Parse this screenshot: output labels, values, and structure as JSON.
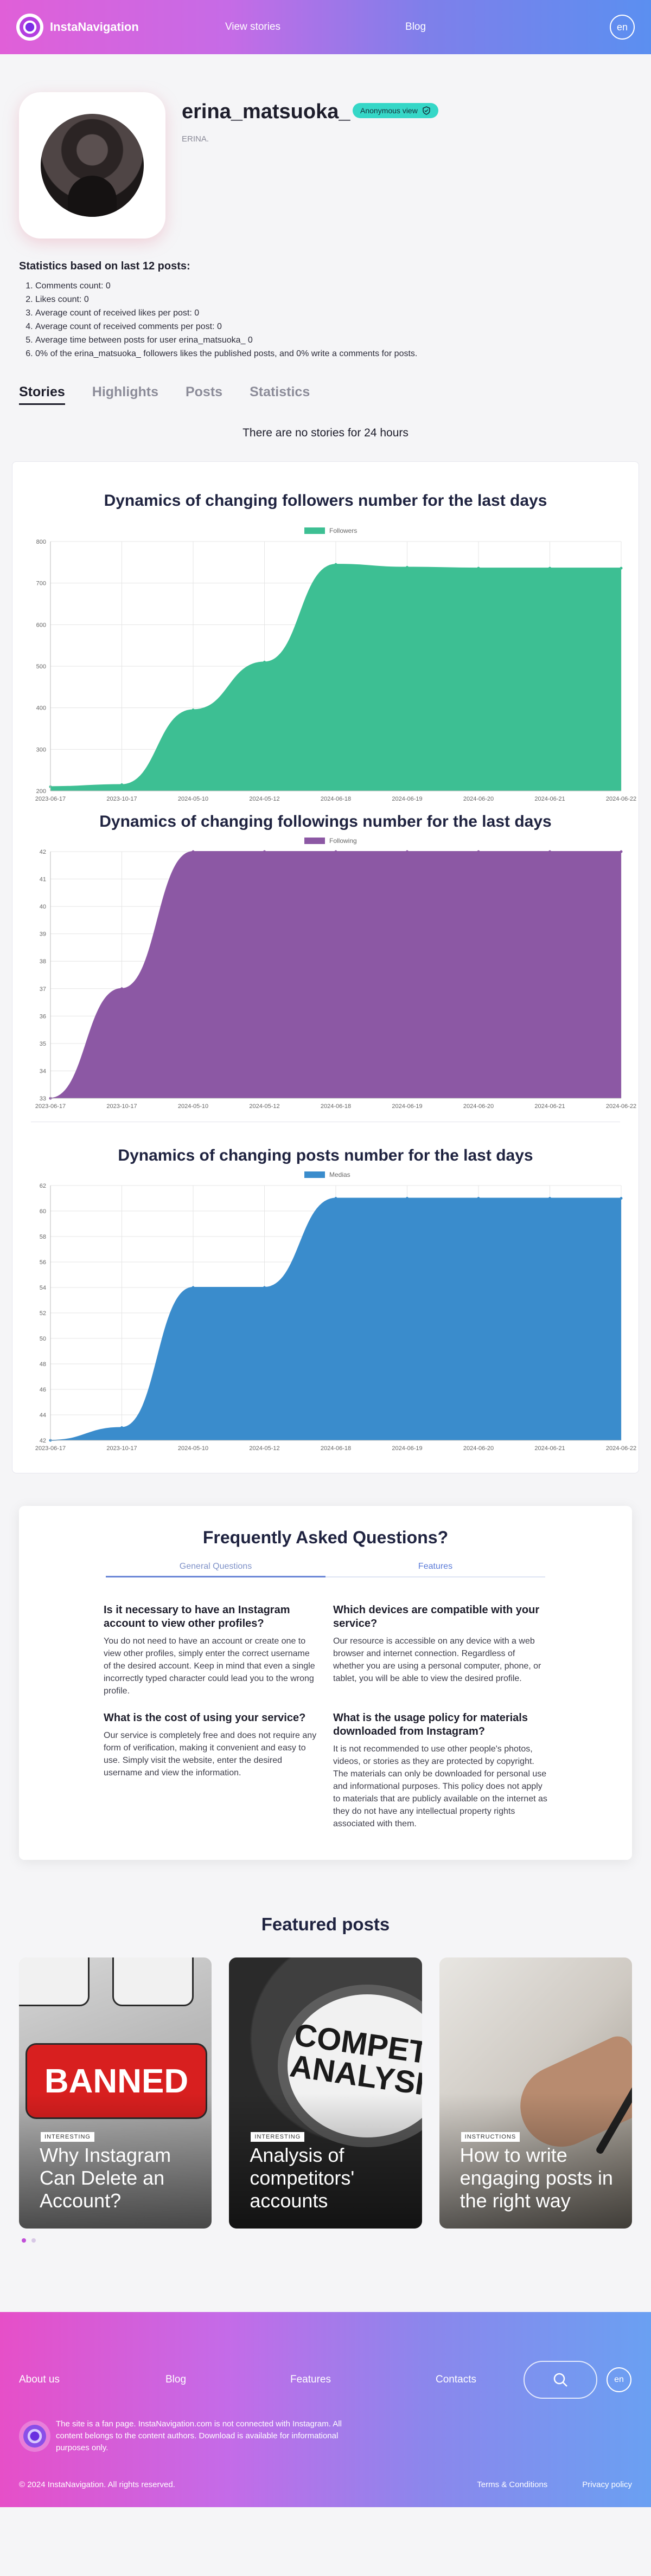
{
  "header": {
    "brand": "InstaNavigation",
    "nav": [
      "View stories",
      "Blog"
    ],
    "lang": "en"
  },
  "profile": {
    "username": "erina_matsuoka_",
    "badge": "Anonymous view",
    "bio": "ERINA."
  },
  "stats": {
    "title": "Statistics based on last 12 posts:",
    "items": [
      "Comments count: 0",
      "Likes count: 0",
      "Average count of received likes per post: 0",
      "Average count of received comments per post: 0",
      "Average time between posts for user erina_matsuoka_ 0",
      "0% of the erina_matsuoka_ followers likes the published posts, and 0% write a comments for posts."
    ]
  },
  "tabs": [
    "Stories",
    "Highlights",
    "Posts",
    "Statistics"
  ],
  "no_stories": "There are no stories for 24 hours",
  "chart_data": [
    {
      "type": "area",
      "title": "Dynamics of changing followers number for the last days",
      "series": [
        {
          "name": "Followers",
          "values": [
            210,
            215,
            395,
            510,
            745,
            738,
            736,
            736,
            736
          ]
        }
      ],
      "categories": [
        "2023-06-17",
        "2023-10-17",
        "2024-05-10",
        "2024-05-12",
        "2024-06-18",
        "2024-06-19",
        "2024-06-20",
        "2024-06-21",
        "2024-06-22"
      ],
      "yticks": [
        200,
        300,
        400,
        500,
        600,
        700,
        800
      ],
      "ylim": [
        200,
        800
      ],
      "color": "#3dbf93",
      "legend": "top"
    },
    {
      "type": "area",
      "title": "Dynamics of changing followings number for the last days",
      "series": [
        {
          "name": "Following",
          "values": [
            33,
            37,
            42,
            42,
            42,
            42,
            42,
            42,
            42
          ]
        }
      ],
      "categories": [
        "2023-06-17",
        "2023-10-17",
        "2024-05-10",
        "2024-05-12",
        "2024-06-18",
        "2024-06-19",
        "2024-06-20",
        "2024-06-21",
        "2024-06-22"
      ],
      "yticks": [
        33,
        34,
        35,
        36,
        37,
        38,
        39,
        40,
        41,
        42
      ],
      "ylim": [
        33,
        42
      ],
      "color": "#8c58a4",
      "legend": "top"
    },
    {
      "type": "area",
      "title": "Dynamics of changing posts number for the last days",
      "series": [
        {
          "name": "Medias",
          "values": [
            42,
            43,
            54,
            54,
            61,
            61,
            61,
            61,
            61
          ]
        }
      ],
      "categories": [
        "2023-06-17",
        "2023-10-17",
        "2024-05-10",
        "2024-05-12",
        "2024-06-18",
        "2024-06-19",
        "2024-06-20",
        "2024-06-21",
        "2024-06-22"
      ],
      "yticks": [
        42,
        44,
        46,
        48,
        50,
        52,
        54,
        56,
        58,
        60,
        62
      ],
      "ylim": [
        42,
        62
      ],
      "color": "#3a8ccc",
      "legend": "top"
    }
  ],
  "faq": {
    "title": "Frequently Asked Questions?",
    "tabs": [
      "General Questions",
      "Features"
    ],
    "items": [
      {
        "q": "Is it necessary to have an Instagram account to view other profiles?",
        "a": "You do not need to have an account or create one to view other profiles, simply enter the correct username of the desired account. Keep in mind that even a single incorrectly typed character could lead you to the wrong profile."
      },
      {
        "q": "Which devices are compatible with your service?",
        "a": "Our resource is accessible on any device with a web browser and internet connection. Regardless of whether you are using a personal computer, phone, or tablet, you will be able to view the desired profile."
      },
      {
        "q": "What is the cost of using your service?",
        "a": "Our service is completely free and does not require any form of verification, making it convenient and easy to use. Simply visit the website, enter the desired username and view the information."
      },
      {
        "q": "What is the usage policy for materials downloaded from Instagram?",
        "a": "It is not recommended to use other people's photos, videos, or stories as they are protected by copyright. The materials can only be downloaded for personal use and informational purposes. This policy does not apply to materials that are publicly available on the internet as they do not have any intellectual property rights associated with them."
      }
    ]
  },
  "featured": {
    "title": "Featured posts",
    "posts": [
      {
        "tag": "INTERESTING",
        "title": "Why Instagram Can Delete an Account?",
        "art": "BANNED"
      },
      {
        "tag": "INTERESTING",
        "title": "Analysis of competitors' accounts",
        "art": "COMPETITOR ANALYSIS"
      },
      {
        "tag": "INSTRUCTIONS",
        "title": "How to write engaging posts in the right way",
        "art": ""
      }
    ]
  },
  "footer": {
    "nav": [
      "About us",
      "Blog",
      "Features",
      "Contacts"
    ],
    "lang": "en",
    "note": "The site is a fan page. InstaNavigation.com is not connected with Instagram. All content belongs to the content authors. Download is available for informational purposes only.",
    "copyright": "© 2024 InstaNavigation. All rights reserved.",
    "links": [
      "Terms & Conditions",
      "Privacy policy"
    ]
  }
}
